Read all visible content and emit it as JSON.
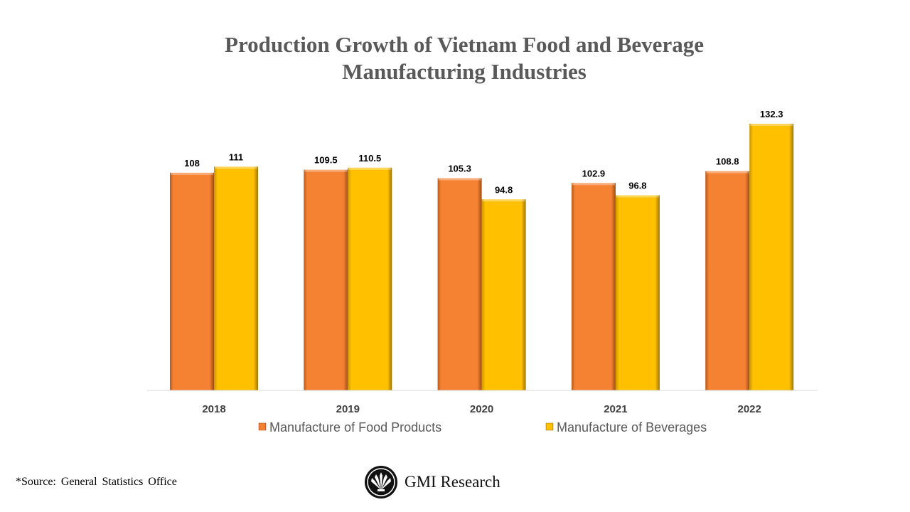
{
  "chart_data": {
    "type": "bar",
    "title": "Production Growth of Vietnam Food and Beverage Manufacturing Industries",
    "title_lines": [
      "Production Growth of Vietnam Food and Beverage",
      "Manufacturing Industries"
    ],
    "categories": [
      "2018",
      "2019",
      "2020",
      "2021",
      "2022"
    ],
    "series": [
      {
        "name": "Manufacture of Food Products",
        "values": [
          108,
          109.5,
          105.3,
          102.9,
          108.8
        ],
        "color": "#F58232"
      },
      {
        "name": "Manufacture of Beverages",
        "values": [
          111,
          110.5,
          94.8,
          96.8,
          132.3
        ],
        "color": "#FFC000"
      }
    ],
    "data_labels": [
      [
        "108",
        "109.5",
        "105.3",
        "102.9",
        "108.8"
      ],
      [
        "111",
        "110.5",
        "94.8",
        "96.8",
        "132.3"
      ]
    ],
    "ylim": [
      0,
      140
    ],
    "grid": false,
    "legend": "bottom",
    "xlabel": "",
    "ylabel": ""
  },
  "footer": {
    "source": "*Source: General Statistics Office",
    "logo_text": "GMI Research"
  }
}
